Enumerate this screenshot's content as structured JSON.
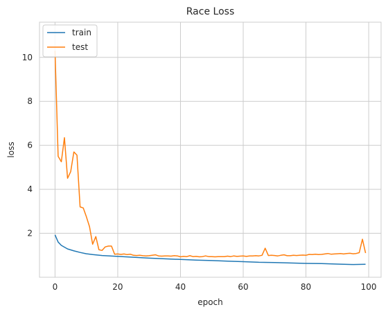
{
  "chart_data": {
    "type": "line",
    "title": "Race Loss",
    "xlabel": "epoch",
    "ylabel": "loss",
    "xlim": [
      -4.95,
      103.95
    ],
    "ylim": [
      0.0,
      11.6
    ],
    "xticks": [
      0,
      20,
      40,
      60,
      80,
      100
    ],
    "yticks": [
      2,
      4,
      6,
      8,
      10
    ],
    "grid": true,
    "legend_position": "top-left",
    "series": [
      {
        "name": "train",
        "color": "#1f77b4",
        "x": [
          0,
          1,
          2,
          4,
          6,
          8,
          10,
          12,
          15,
          20,
          25,
          30,
          35,
          40,
          45,
          50,
          55,
          60,
          65,
          70,
          75,
          80,
          85,
          90,
          95,
          99
        ],
        "y": [
          1.93,
          1.6,
          1.45,
          1.29,
          1.2,
          1.13,
          1.07,
          1.03,
          0.99,
          0.95,
          0.91,
          0.87,
          0.84,
          0.81,
          0.78,
          0.76,
          0.73,
          0.71,
          0.68,
          0.67,
          0.65,
          0.63,
          0.62,
          0.6,
          0.58,
          0.59
        ]
      },
      {
        "name": "test",
        "color": "#ff7f0e",
        "x": [
          0,
          1,
          2,
          3,
          4,
          5,
          6,
          7,
          8,
          9,
          10,
          11,
          12,
          13,
          14,
          15,
          16,
          17,
          18,
          19,
          20,
          21,
          22,
          23,
          24,
          25,
          26,
          27,
          28,
          29,
          30,
          31,
          32,
          33,
          34,
          35,
          36,
          37,
          38,
          39,
          40,
          41,
          42,
          43,
          44,
          45,
          46,
          47,
          48,
          49,
          50,
          51,
          52,
          53,
          54,
          55,
          56,
          57,
          58,
          59,
          60,
          61,
          62,
          63,
          64,
          65,
          66,
          67,
          68,
          69,
          70,
          71,
          72,
          73,
          74,
          75,
          76,
          77,
          78,
          79,
          80,
          81,
          82,
          83,
          84,
          85,
          86,
          87,
          88,
          89,
          90,
          91,
          92,
          93,
          94,
          95,
          96,
          97,
          98,
          99
        ],
        "y": [
          10.3,
          5.5,
          5.25,
          6.35,
          4.5,
          4.8,
          5.7,
          5.55,
          3.2,
          3.15,
          2.75,
          2.3,
          1.5,
          1.85,
          1.25,
          1.22,
          1.38,
          1.42,
          1.42,
          1.05,
          1.06,
          1.04,
          1.06,
          1.03,
          1.05,
          1.0,
          0.99,
          1.0,
          0.98,
          0.97,
          0.98,
          1.0,
          1.02,
          0.97,
          0.96,
          0.97,
          0.97,
          0.96,
          0.98,
          0.97,
          0.93,
          0.95,
          0.94,
          0.98,
          0.94,
          0.95,
          0.93,
          0.94,
          0.97,
          0.94,
          0.94,
          0.93,
          0.94,
          0.94,
          0.94,
          0.96,
          0.94,
          0.97,
          0.95,
          0.96,
          0.97,
          0.95,
          0.97,
          0.97,
          0.98,
          0.97,
          1.0,
          1.32,
          0.99,
          1.0,
          0.99,
          0.97,
          1.0,
          1.02,
          0.98,
          0.98,
          1.0,
          0.99,
          1.0,
          1.01,
          1.0,
          1.04,
          1.03,
          1.05,
          1.03,
          1.04,
          1.06,
          1.08,
          1.05,
          1.06,
          1.07,
          1.08,
          1.06,
          1.08,
          1.09,
          1.07,
          1.08,
          1.12,
          1.73,
          1.1
        ]
      }
    ]
  }
}
